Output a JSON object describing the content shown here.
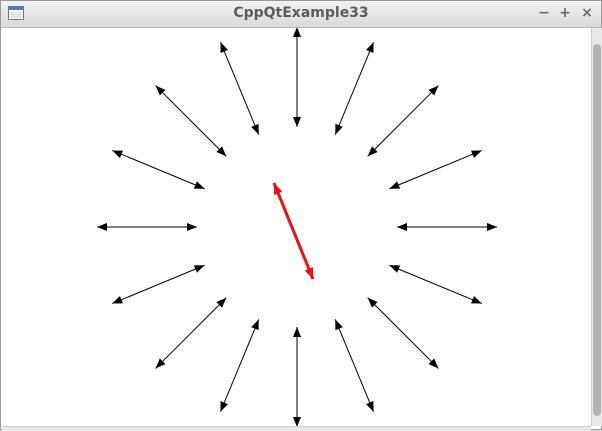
{
  "window": {
    "title": "CppQtExample33",
    "controls": {
      "minimize": "−",
      "maximize": "+",
      "close": "×"
    }
  },
  "icons": {
    "app": "window-icon"
  },
  "colors": {
    "arrows": "#000000",
    "highlight_arrow": "#ee1111",
    "background": "#ffffff"
  }
}
